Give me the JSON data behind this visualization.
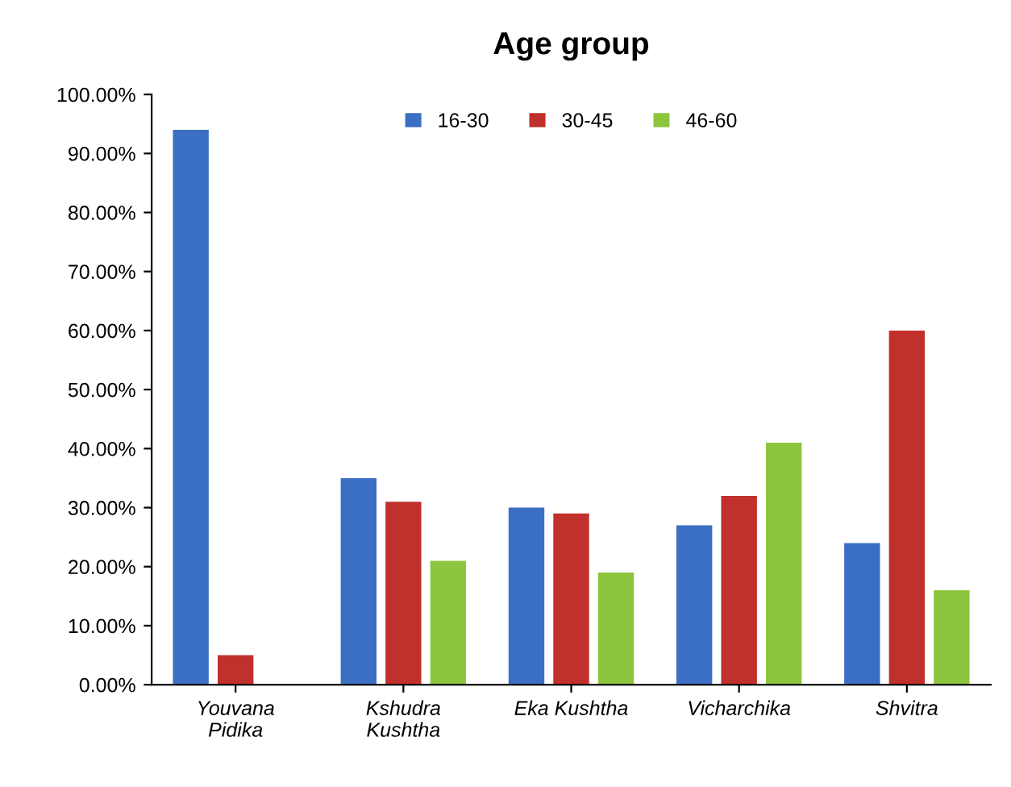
{
  "chart_data": {
    "type": "bar",
    "title": "Age group",
    "categories": [
      "Youvana\nPidika",
      "Kshudra\nKushtha",
      "Eka Kushtha",
      "Vicharchika",
      "Shvitra"
    ],
    "series": [
      {
        "name": "16-30",
        "color": "#3a6fc4",
        "values": [
          94,
          35,
          30,
          27,
          24
        ]
      },
      {
        "name": "30-45",
        "color": "#c0302c",
        "values": [
          5,
          31,
          29,
          32,
          60
        ]
      },
      {
        "name": "46-60",
        "color": "#8cc63e",
        "values": [
          0,
          21,
          19,
          41,
          16
        ]
      }
    ],
    "ylim": [
      0,
      100
    ],
    "yticks": [
      {
        "value": 0,
        "label": "0.00%"
      },
      {
        "value": 10,
        "label": "10.00%"
      },
      {
        "value": 20,
        "label": "20.00%"
      },
      {
        "value": 30,
        "label": "30.00%"
      },
      {
        "value": 40,
        "label": "40.00%"
      },
      {
        "value": 50,
        "label": "50.00%"
      },
      {
        "value": 60,
        "label": "60.00%"
      },
      {
        "value": 70,
        "label": "70.00%"
      },
      {
        "value": 80,
        "label": "80.00%"
      },
      {
        "value": 90,
        "label": "90.00%"
      },
      {
        "value": 100,
        "label": "100.00%"
      }
    ],
    "grid": false,
    "legend": "top"
  }
}
